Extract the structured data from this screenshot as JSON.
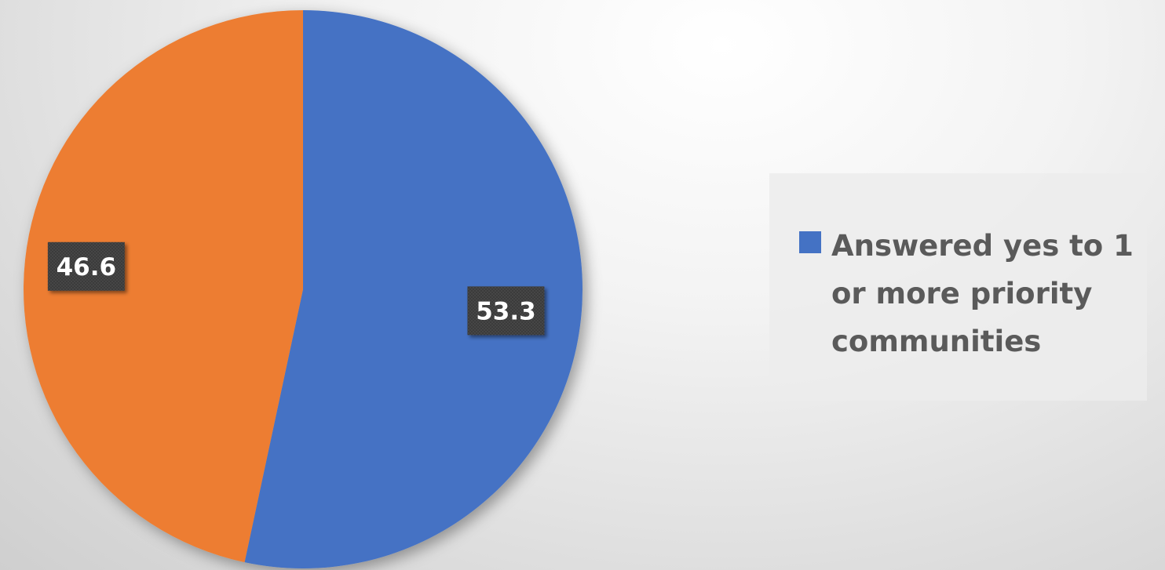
{
  "chart_data": {
    "type": "pie",
    "slices": [
      {
        "name": "Answered yes to 1 or more priority communities",
        "value": 53.3,
        "label": "53.3",
        "color": "#4472C4",
        "in_legend": true
      },
      {
        "name": "",
        "value": 46.6,
        "label": "46.6",
        "color": "#ED7D31",
        "in_legend": false
      }
    ],
    "start_angle_deg": 0,
    "direction": "clockwise",
    "legend": {
      "placement": "right",
      "entries": [
        "Answered yes to 1 or more priority communities"
      ]
    },
    "title": ""
  }
}
